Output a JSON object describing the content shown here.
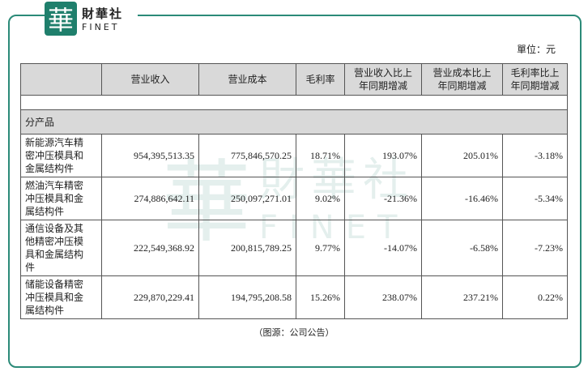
{
  "logo": {
    "char": "華",
    "name": "財華社",
    "latin": "FINET"
  },
  "unit": "單位：元",
  "table": {
    "header": [
      [
        ""
      ],
      [
        "营业收入"
      ],
      [
        "营业成本"
      ],
      [
        "毛利率"
      ],
      [
        "营业收入比上",
        "年同期增减"
      ],
      [
        "营业成本比上",
        "年同期增减"
      ],
      [
        "毛利率比上",
        "年同期增减"
      ]
    ],
    "section": "分产品",
    "rows": [
      [
        [
          "新能源汽车精",
          "密冲压模具和",
          "金属结构件"
        ],
        "954,395,513.35",
        "775,846,570.25",
        "18.71%",
        "193.07%",
        "205.01%",
        "-3.18%"
      ],
      [
        [
          "燃油汽车精密",
          "冲压模具和金",
          "属结构件"
        ],
        "274,886,642.11",
        "250,097,271.01",
        "9.02%",
        "-21.36%",
        "-16.46%",
        "-5.34%"
      ],
      [
        [
          "通信设备及其",
          "他精密冲压模",
          "具和金属结构",
          "件"
        ],
        "222,549,368.92",
        "200,815,789.25",
        "9.77%",
        "-14.07%",
        "-6.58%",
        "-7.23%"
      ],
      [
        [
          "储能设备精密",
          "冲压模具和金",
          "属结构件"
        ],
        "229,870,229.41",
        "194,795,208.58",
        "15.26%",
        "238.07%",
        "237.21%",
        "0.22%"
      ]
    ]
  },
  "caption": "（图源：公司公告）"
}
